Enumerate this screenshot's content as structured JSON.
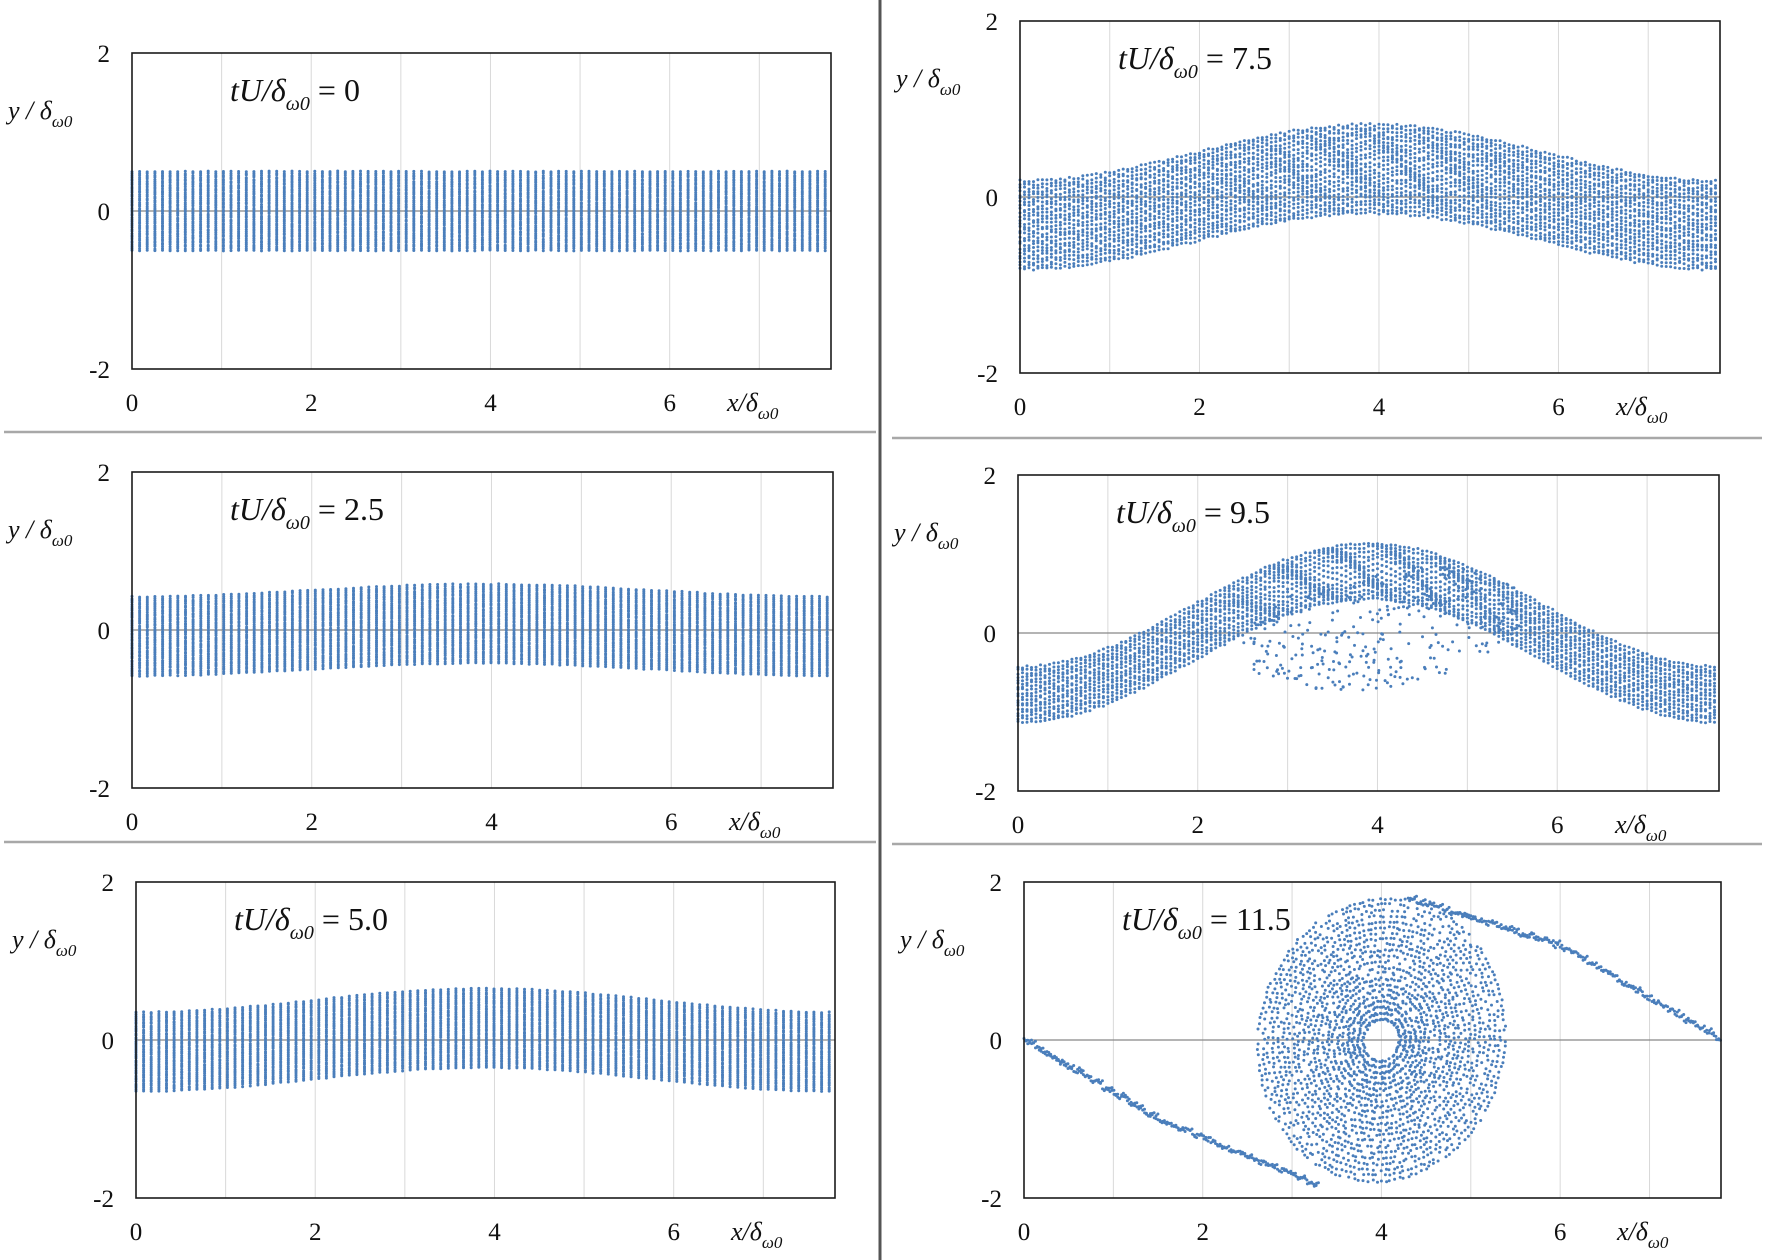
{
  "chart_data": [
    {
      "type": "scatter",
      "panel": "top-left",
      "annotation": {
        "prefix": "tU/δ",
        "sub": "ω0",
        "suffix": " = 0"
      },
      "xlabel": {
        "main": "x/δ",
        "sub": "ω0"
      },
      "ylabel": {
        "main": "y / δ",
        "sub": "ω0"
      },
      "xlim": [
        0,
        7.8
      ],
      "ylim": [
        -2,
        2
      ],
      "xticks": [
        0,
        2,
        4,
        6
      ],
      "yticks": [
        2,
        0,
        -2
      ],
      "color": "#4a7ebb",
      "grid": true,
      "pattern": "band",
      "t": 0,
      "band": {
        "half_width": 0.5,
        "amplitude": 0.0
      }
    },
    {
      "type": "scatter",
      "panel": "middle-left",
      "annotation": {
        "prefix": "tU/δ",
        "sub": "ω0",
        "suffix": " = 2.5"
      },
      "xlabel": {
        "main": "x/δ",
        "sub": "ω0"
      },
      "ylabel": {
        "main": "y / δ",
        "sub": "ω0"
      },
      "xlim": [
        0,
        7.8
      ],
      "ylim": [
        -2,
        2
      ],
      "xticks": [
        0,
        2,
        4,
        6
      ],
      "yticks": [
        2,
        0,
        -2
      ],
      "color": "#4a7ebb",
      "grid": true,
      "pattern": "band",
      "t": 2.5,
      "band": {
        "half_width": 0.5,
        "amplitude": 0.08
      }
    },
    {
      "type": "scatter",
      "panel": "bottom-left",
      "annotation": {
        "prefix": "tU/δ",
        "sub": "ω0",
        "suffix": " = 5.0"
      },
      "xlabel": {
        "main": "x/δ",
        "sub": "ω0"
      },
      "ylabel": {
        "main": "y / δ",
        "sub": "ω0"
      },
      "xlim": [
        0,
        7.8
      ],
      "ylim": [
        -2,
        2
      ],
      "xticks": [
        0,
        2,
        4,
        6
      ],
      "yticks": [
        2,
        0,
        -2
      ],
      "color": "#4a7ebb",
      "grid": true,
      "pattern": "band",
      "t": 5.0,
      "band": {
        "half_width": 0.5,
        "amplitude": 0.15
      }
    },
    {
      "type": "scatter",
      "panel": "top-right",
      "annotation": {
        "prefix": "tU/δ",
        "sub": "ω0",
        "suffix": " = 7.5"
      },
      "xlabel": {
        "main": "x/δ",
        "sub": "ω0"
      },
      "ylabel": {
        "main": "y / δ",
        "sub": "ω0"
      },
      "xlim": [
        0,
        7.8
      ],
      "ylim": [
        -2,
        2
      ],
      "xticks": [
        0,
        2,
        4,
        6
      ],
      "yticks": [
        2,
        0,
        -2
      ],
      "color": "#4a7ebb",
      "grid": true,
      "pattern": "rollup",
      "t": 7.5,
      "band": {
        "half_width": 0.5,
        "amplitude": 0.32
      }
    },
    {
      "type": "scatter",
      "panel": "middle-right",
      "annotation": {
        "prefix": "tU/δ",
        "sub": "ω0",
        "suffix": " = 9.5"
      },
      "xlabel": {
        "main": "x/δ",
        "sub": "ω0"
      },
      "ylabel": {
        "main": "y / δ",
        "sub": "ω0"
      },
      "xlim": [
        0,
        7.8
      ],
      "ylim": [
        -2,
        2
      ],
      "xticks": [
        0,
        2,
        4,
        6
      ],
      "yticks": [
        2,
        0,
        -2
      ],
      "color": "#4a7ebb",
      "grid": true,
      "pattern": "rollup",
      "t": 9.5,
      "band": {
        "half_width": 0.35,
        "amplitude": 0.78
      }
    },
    {
      "type": "scatter",
      "panel": "bottom-right",
      "annotation": {
        "prefix": "tU/δ",
        "sub": "ω0",
        "suffix": " = 11.5"
      },
      "xlabel": {
        "main": "x/δ",
        "sub": "ω0"
      },
      "ylabel": {
        "main": "y / δ",
        "sub": "ω0"
      },
      "xlim": [
        0,
        7.8
      ],
      "ylim": [
        -2,
        2
      ],
      "xticks": [
        0,
        2,
        4,
        6
      ],
      "yticks": [
        2,
        0,
        -2
      ],
      "color": "#4a7ebb",
      "grid": true,
      "pattern": "vortex",
      "t": 11.5,
      "vortex": {
        "center": [
          4.0,
          0.0
        ],
        "rx": 1.45,
        "ry": 1.75
      },
      "braid": [
        [
          0.0,
          0.0
        ],
        [
          1.5,
          -1.0
        ],
        [
          3.3,
          -1.85
        ],
        [
          4.3,
          1.8
        ],
        [
          6.0,
          1.2
        ],
        [
          7.8,
          0.0
        ]
      ]
    }
  ]
}
